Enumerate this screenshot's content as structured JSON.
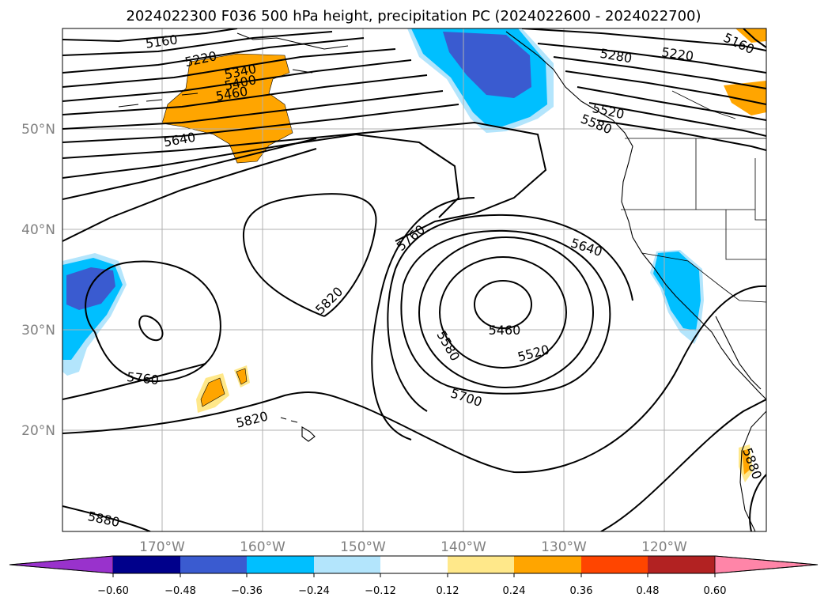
{
  "title": "2024022300 F036 500 hPa height, precipitation PC (2024022600 - 2024022700)",
  "map": {
    "lat_labels": [
      "50°N",
      "40°N",
      "30°N",
      "20°N"
    ],
    "lon_labels": [
      "170°W",
      "160°W",
      "150°W",
      "140°W",
      "130°W",
      "120°W"
    ],
    "contour_labels": [
      "5160",
      "5220",
      "5340",
      "5400",
      "5460",
      "5640",
      "5160",
      "5220",
      "5280",
      "5520",
      "5580",
      "5760",
      "5640",
      "5820",
      "5460",
      "5580",
      "5520",
      "5700",
      "5760",
      "5820",
      "5880",
      "5880"
    ],
    "colors": {
      "dark_blue": "#3a5bd0",
      "mid_blue": "#00bfff",
      "light_blue": "#b3e5fc",
      "light_yellow": "#ffe88a",
      "orange": "#ffa500"
    }
  },
  "colorbar": {
    "ticks": [
      "−0.60",
      "−0.48",
      "−0.36",
      "−0.24",
      "−0.12",
      "0.12",
      "0.24",
      "0.36",
      "0.48",
      "0.60"
    ],
    "colors": [
      "#9932cc",
      "#00008b",
      "#3a5bd0",
      "#00bfff",
      "#b3e5fc",
      "#ffffff",
      "#ffe88a",
      "#ffa500",
      "#ff4500",
      "#b22222",
      "#ff85a8"
    ]
  }
}
